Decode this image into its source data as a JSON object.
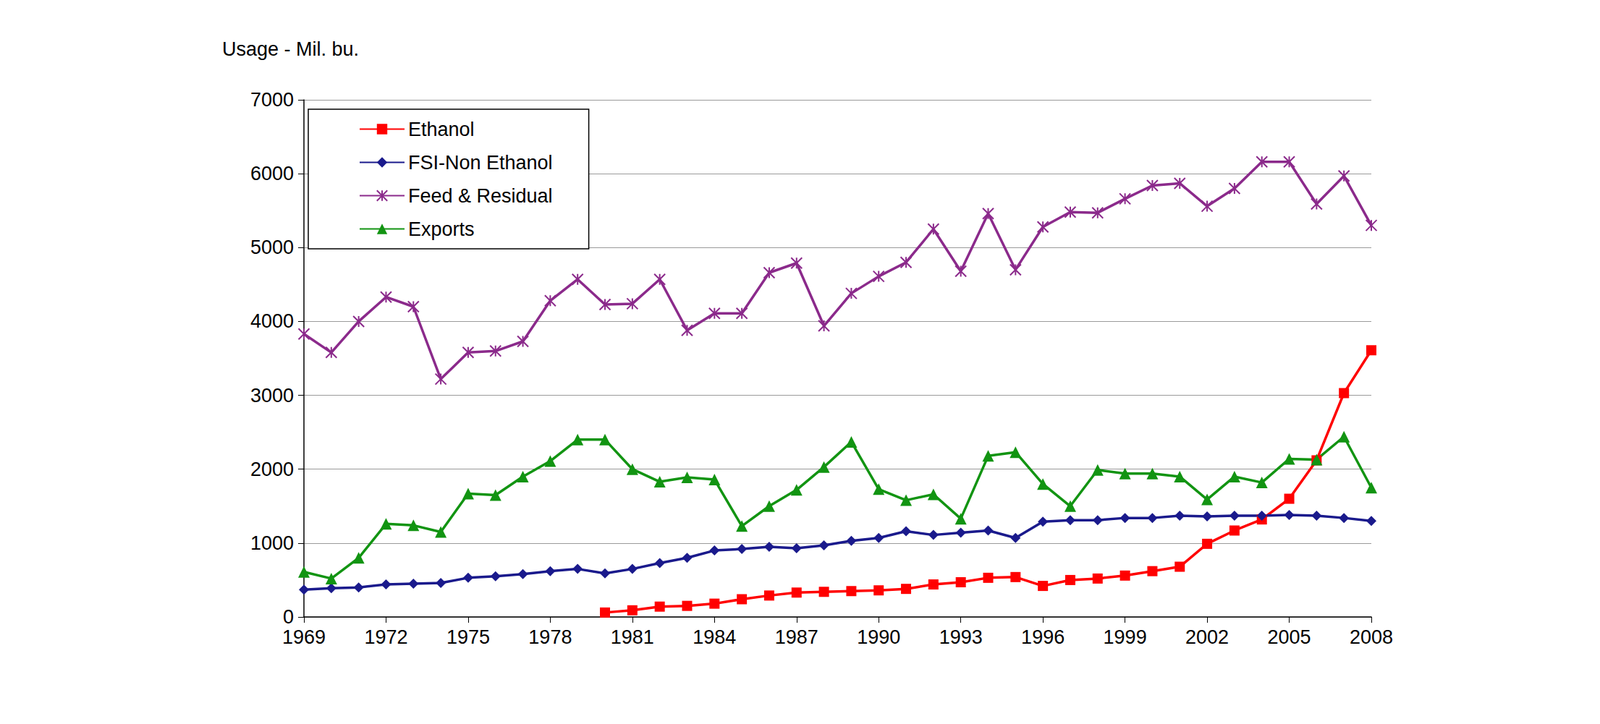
{
  "chart_data": {
    "type": "line",
    "y_label": "Usage - Mil. bu.",
    "x": [
      1969,
      1970,
      1971,
      1972,
      1973,
      1974,
      1975,
      1976,
      1977,
      1978,
      1979,
      1980,
      1981,
      1982,
      1983,
      1984,
      1985,
      1986,
      1987,
      1988,
      1989,
      1990,
      1991,
      1992,
      1993,
      1994,
      1995,
      1996,
      1997,
      1998,
      1999,
      2000,
      2001,
      2002,
      2003,
      2004,
      2005,
      2006,
      2007,
      2008
    ],
    "xlim": [
      1969,
      2008
    ],
    "xticks": [
      1969,
      1972,
      1975,
      1978,
      1981,
      1984,
      1987,
      1990,
      1993,
      1996,
      1999,
      2002,
      2005,
      2008
    ],
    "ylim": [
      0,
      7000
    ],
    "yticks": [
      0,
      1000,
      2000,
      3000,
      4000,
      5000,
      6000,
      7000
    ],
    "grid": true,
    "legend": "upper left",
    "series": [
      {
        "name": "Ethanol",
        "color": "#ff0000",
        "marker": "square",
        "values": [
          null,
          null,
          null,
          null,
          null,
          null,
          null,
          null,
          null,
          null,
          null,
          60,
          90,
          140,
          150,
          180,
          240,
          290,
          330,
          340,
          350,
          360,
          380,
          440,
          470,
          530,
          540,
          420,
          500,
          520,
          560,
          620,
          680,
          990,
          1170,
          1320,
          1600,
          2120,
          3030,
          3610
        ]
      },
      {
        "name": "FSI-Non Ethanol",
        "color": "#1a1a8c",
        "marker": "diamond",
        "values": [
          370,
          390,
          400,
          440,
          450,
          460,
          530,
          550,
          580,
          620,
          650,
          590,
          650,
          730,
          800,
          900,
          920,
          950,
          930,
          970,
          1030,
          1070,
          1160,
          1110,
          1140,
          1170,
          1070,
          1290,
          1310,
          1310,
          1340,
          1340,
          1370,
          1360,
          1370,
          1370,
          1380,
          1370,
          1340,
          1300
        ]
      },
      {
        "name": "Feed & Residual",
        "color": "#8b2a8b",
        "marker": "asterisk",
        "values": [
          3830,
          3580,
          4000,
          4330,
          4200,
          3220,
          3580,
          3600,
          3730,
          4280,
          4570,
          4230,
          4240,
          4570,
          3880,
          4110,
          4110,
          4660,
          4790,
          3940,
          4380,
          4610,
          4800,
          5250,
          4680,
          5460,
          4700,
          5280,
          5480,
          5470,
          5660,
          5840,
          5870,
          5560,
          5800,
          6160,
          6160,
          5590,
          5970,
          5300
        ]
      },
      {
        "name": "Exports",
        "color": "#129412",
        "marker": "triangle",
        "values": [
          610,
          520,
          800,
          1260,
          1240,
          1150,
          1670,
          1650,
          1900,
          2110,
          2400,
          2400,
          2000,
          1830,
          1890,
          1860,
          1230,
          1500,
          1720,
          2030,
          2370,
          1730,
          1580,
          1660,
          1330,
          2180,
          2230,
          1800,
          1500,
          1990,
          1940,
          1940,
          1900,
          1590,
          1900,
          1820,
          2140,
          2130,
          2440,
          1750
        ]
      }
    ]
  }
}
